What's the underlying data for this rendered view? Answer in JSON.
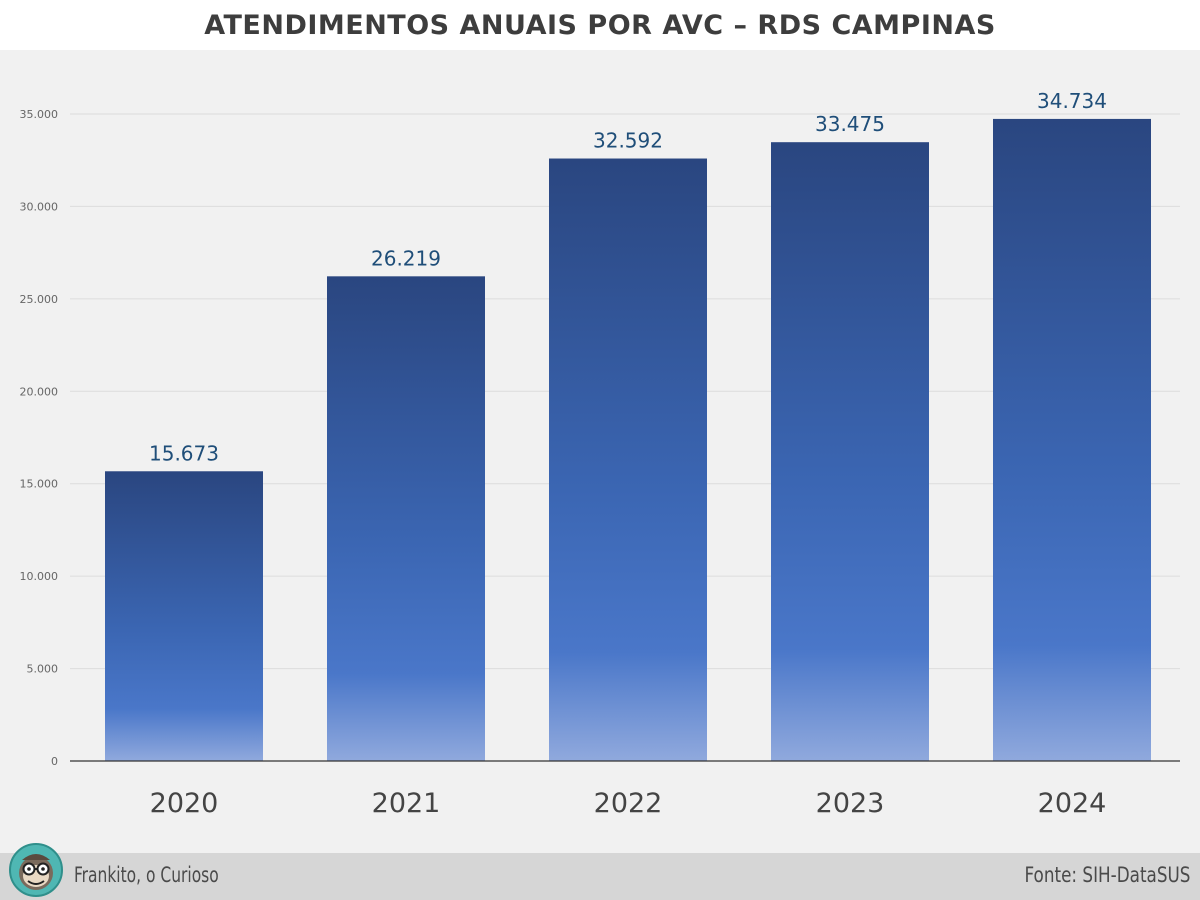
{
  "chart_data": {
    "type": "bar",
    "title": "ATENDIMENTOS ANUAIS POR AVC – RDS CAMPINAS",
    "categories": [
      "2020",
      "2021",
      "2022",
      "2023",
      "2024"
    ],
    "values": [
      15673,
      26219,
      32592,
      33475,
      34734
    ],
    "value_labels": [
      "15.673",
      "26.219",
      "32.592",
      "33.475",
      "34.734"
    ],
    "ylim": [
      0,
      35000
    ],
    "yticks": [
      0,
      5000,
      10000,
      15000,
      20000,
      25000,
      30000,
      35000
    ],
    "ytick_labels": [
      "0",
      "5.000",
      "10.000",
      "15.000",
      "20.000",
      "25.000",
      "30.000",
      "35.000"
    ],
    "xlabel": "",
    "ylabel": "",
    "grid": true
  },
  "footer": {
    "author": "Frankito, o Curioso",
    "source": "Fonte: SIH-DataSUS"
  },
  "colors": {
    "bar_top": "#2a4680",
    "bar_mid": "#4472c4",
    "bar_bottom": "#8fa8dc",
    "label": "#1f4e79"
  }
}
